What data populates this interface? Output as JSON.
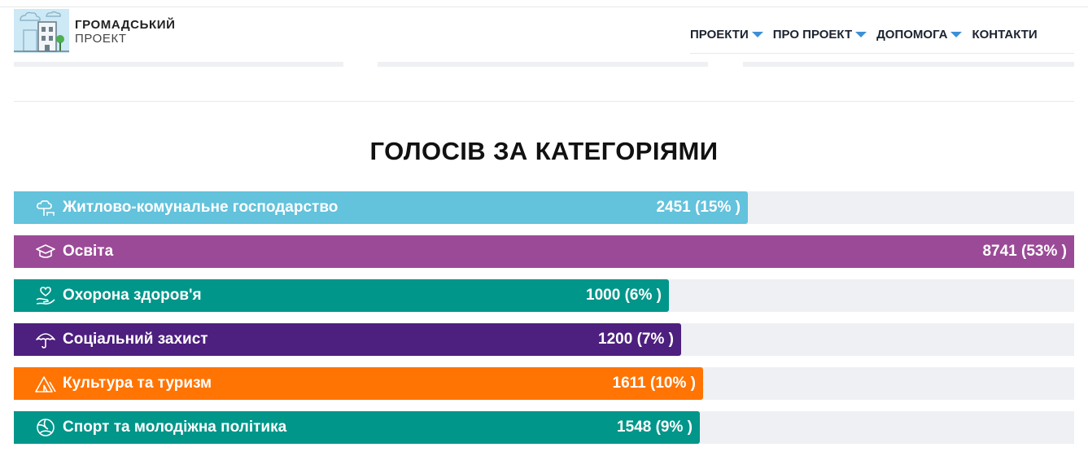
{
  "header": {
    "brand_title": "ГРОМАДСЬКИЙ",
    "brand_subtitle": "ПРОЕКТ",
    "nav": [
      {
        "label": "ПРОЕКТИ",
        "has_dropdown": true
      },
      {
        "label": "ПРО ПРОЕКТ",
        "has_dropdown": true
      },
      {
        "label": "ДОПОМОГА",
        "has_dropdown": true
      },
      {
        "label": "КОНТАКТИ",
        "has_dropdown": false
      }
    ],
    "accent_color": "#3d8fd6"
  },
  "section": {
    "title": "ГОЛОСІВ ЗА КАТЕГОРІЯМИ"
  },
  "chart_data": {
    "type": "bar",
    "orientation": "horizontal",
    "title": "ГОЛОСІВ ЗА КАТЕГОРІЯМИ",
    "xlim": [
      0,
      8741
    ],
    "grid": false,
    "categories": [
      "Житлово-комунальне господарство",
      "Освіта",
      "Охорона здоров'я",
      "Соціальний захист",
      "Культура та туризм",
      "Спорт та молодіжна політика"
    ],
    "values": [
      2451,
      8741,
      1000,
      1200,
      1611,
      1548
    ],
    "value_labels": [
      "2451 (15% )",
      "8741 (53% )",
      "1000 (6% )",
      "1200 (7% )",
      "1611 (10% )",
      "1548 (9% )"
    ],
    "fill_fractions": [
      0.692,
      1.0,
      0.618,
      0.629,
      0.65,
      0.647
    ],
    "colors": [
      "#63c2dc",
      "#9b4a97",
      "#00968a",
      "#4d1f7e",
      "#ff7403",
      "#00968a"
    ],
    "icons": [
      "cloud-tree-icon",
      "graduation-cap-icon",
      "heart-hand-icon",
      "umbrella-icon",
      "tent-icon",
      "volleyball-icon"
    ],
    "track_color": "#eef0f3"
  }
}
